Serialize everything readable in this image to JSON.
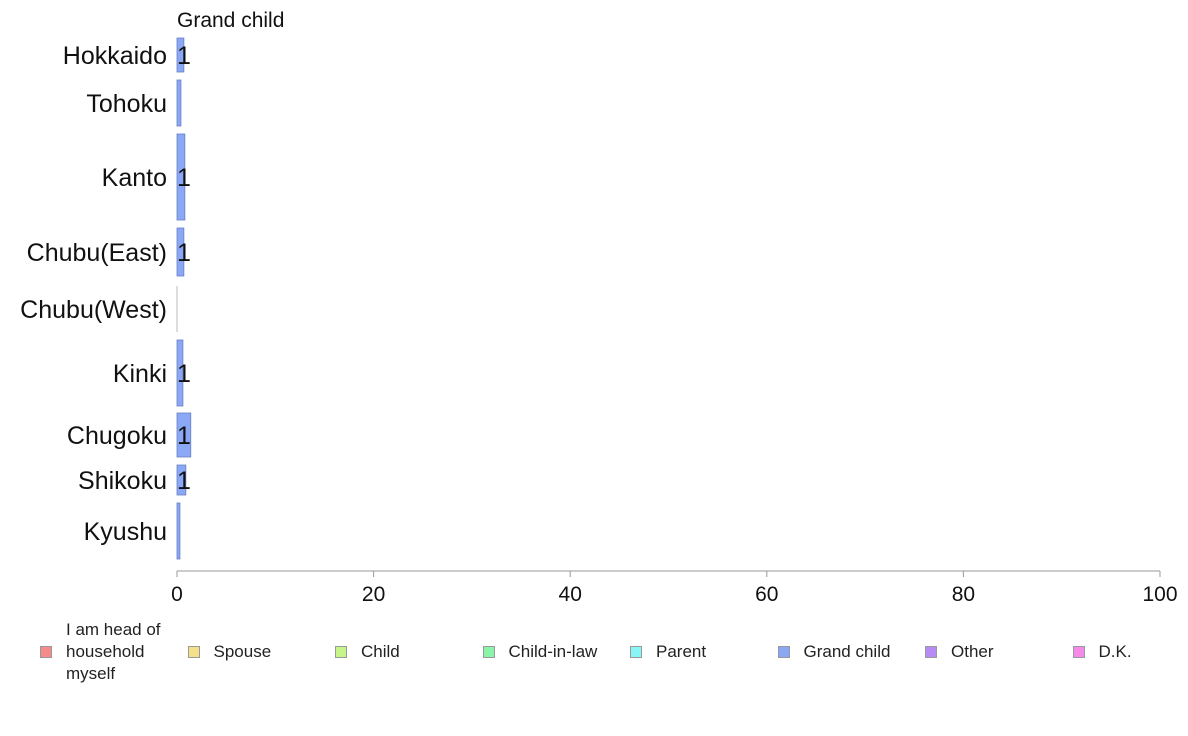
{
  "chart_data": {
    "type": "bar",
    "orientation": "horizontal",
    "title": "Grand child",
    "categories": [
      "Hokkaido",
      "Tohoku",
      "Kanto",
      "Chubu(East)",
      "Chubu(West)",
      "Kinki",
      "Chugoku",
      "Shikoku",
      "Kyushu"
    ],
    "series": [
      {
        "name": "Grand child",
        "color": "#8aa8f5",
        "values": [
          0.7,
          0.4,
          0.8,
          0.7,
          0.0,
          0.6,
          1.4,
          0.9,
          0.3
        ]
      }
    ],
    "data_labels": [
      "1",
      "",
      "1",
      "1",
      "",
      "1",
      "1",
      "1",
      ""
    ],
    "xlim": [
      0,
      100
    ],
    "xticks": [
      "0",
      "20",
      "40",
      "60",
      "80",
      "100"
    ],
    "xlabel": "",
    "ylabel": "",
    "grid": false,
    "legend_position": "bottom",
    "legend": [
      {
        "label": "I am head of household myself",
        "color": "#f58a8a"
      },
      {
        "label": "Spouse",
        "color": "#f5e08a"
      },
      {
        "label": "Child",
        "color": "#c8f58a"
      },
      {
        "label": "Child-in-law",
        "color": "#8af5a8"
      },
      {
        "label": "Parent",
        "color": "#8af5f5"
      },
      {
        "label": "Grand child",
        "color": "#8aa8f5"
      },
      {
        "label": "Other",
        "color": "#b88af5"
      },
      {
        "label": "D.K.",
        "color": "#f58ae8"
      }
    ]
  }
}
